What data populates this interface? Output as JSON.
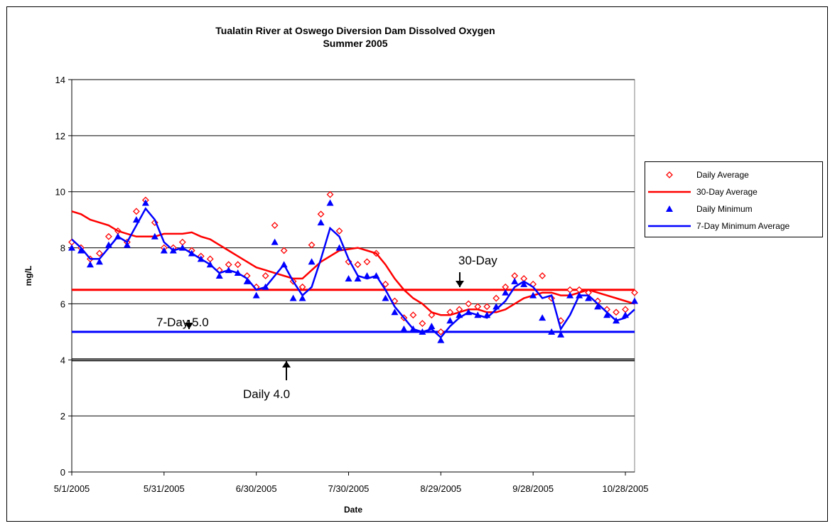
{
  "chart_data": {
    "type": "line",
    "title": [
      "Tualatin River at Oswego Diversion Dam Dissolved Oxygen",
      "Summer 2005"
    ],
    "x_label": "Date",
    "y_label": "mg/L",
    "xlim": [
      "5/1/2005",
      "10/31/2005"
    ],
    "xticks": [
      "5/1/2005",
      "5/31/2005",
      "6/30/2005",
      "7/30/2005",
      "8/29/2005",
      "9/28/2005",
      "10/28/2005"
    ],
    "ylim": [
      0,
      14
    ],
    "yticks": [
      0,
      2,
      4,
      6,
      8,
      10,
      12,
      14
    ],
    "grid": true,
    "legend": "right",
    "x": [
      "5/1/2005",
      "5/4/2005",
      "5/7/2005",
      "5/10/2005",
      "5/13/2005",
      "5/16/2005",
      "5/19/2005",
      "5/22/2005",
      "5/25/2005",
      "5/28/2005",
      "5/31/2005",
      "6/3/2005",
      "6/6/2005",
      "6/9/2005",
      "6/12/2005",
      "6/15/2005",
      "6/18/2005",
      "6/21/2005",
      "6/24/2005",
      "6/27/2005",
      "6/30/2005",
      "7/3/2005",
      "7/6/2005",
      "7/9/2005",
      "7/12/2005",
      "7/15/2005",
      "7/18/2005",
      "7/21/2005",
      "7/24/2005",
      "7/27/2005",
      "7/30/2005",
      "8/2/2005",
      "8/5/2005",
      "8/8/2005",
      "8/11/2005",
      "8/14/2005",
      "8/17/2005",
      "8/20/2005",
      "8/23/2005",
      "8/26/2005",
      "8/29/2005",
      "9/1/2005",
      "9/4/2005",
      "9/7/2005",
      "9/10/2005",
      "9/13/2005",
      "9/16/2005",
      "9/19/2005",
      "9/22/2005",
      "9/25/2005",
      "9/28/2005",
      "10/1/2005",
      "10/4/2005",
      "10/7/2005",
      "10/10/2005",
      "10/13/2005",
      "10/16/2005",
      "10/19/2005",
      "10/22/2005",
      "10/25/2005",
      "10/28/2005",
      "10/31/2005"
    ],
    "series": [
      {
        "name": "Daily Average",
        "color": "#ff0000",
        "marker": "diamond",
        "values": [
          8.2,
          8.0,
          7.6,
          7.8,
          8.4,
          8.6,
          8.2,
          9.3,
          9.7,
          8.9,
          8.0,
          8.0,
          8.2,
          7.9,
          7.7,
          7.6,
          7.2,
          7.4,
          7.4,
          7.0,
          6.6,
          7.0,
          8.8,
          7.9,
          6.8,
          6.6,
          8.1,
          9.2,
          9.9,
          8.6,
          7.5,
          7.4,
          7.5,
          7.8,
          6.7,
          6.1,
          5.5,
          5.6,
          5.3,
          5.6,
          5.0,
          5.7,
          5.8,
          6.0,
          5.9,
          5.9,
          6.2,
          6.6,
          7.0,
          6.9,
          6.7,
          7.0,
          6.2,
          5.4,
          6.5,
          6.5,
          6.4,
          6.1,
          5.8,
          5.7,
          5.8,
          6.4
        ]
      },
      {
        "name": "30-Day Average",
        "color": "#ff0000",
        "marker": "line",
        "values": [
          9.3,
          9.2,
          9.0,
          8.9,
          8.8,
          8.6,
          8.5,
          8.4,
          8.4,
          8.4,
          8.5,
          8.5,
          8.5,
          8.55,
          8.4,
          8.3,
          8.1,
          7.9,
          7.7,
          7.5,
          7.3,
          7.2,
          7.1,
          7.0,
          6.9,
          6.9,
          7.2,
          7.5,
          7.7,
          7.9,
          7.95,
          8.0,
          7.9,
          7.8,
          7.4,
          6.9,
          6.5,
          6.2,
          6.0,
          5.7,
          5.6,
          5.6,
          5.7,
          5.8,
          5.8,
          5.7,
          5.7,
          5.8,
          6.0,
          6.2,
          6.3,
          6.4,
          6.4,
          6.3,
          6.3,
          6.4,
          6.5,
          6.4,
          6.3,
          6.2,
          6.1,
          6.0
        ]
      },
      {
        "name": "Daily Minimum",
        "color": "#0000ff",
        "marker": "triangle",
        "values": [
          8.0,
          7.9,
          7.4,
          7.5,
          8.1,
          8.4,
          8.1,
          9.0,
          9.6,
          8.4,
          7.9,
          7.9,
          8.0,
          7.8,
          7.6,
          7.4,
          7.0,
          7.2,
          7.1,
          6.8,
          6.3,
          6.6,
          8.2,
          7.4,
          6.2,
          6.2,
          7.5,
          8.9,
          9.6,
          8.0,
          6.9,
          6.9,
          7.0,
          7.0,
          6.2,
          5.7,
          5.1,
          5.1,
          5.0,
          5.2,
          4.7,
          5.4,
          5.6,
          5.7,
          5.6,
          5.6,
          5.9,
          6.4,
          6.8,
          6.7,
          6.3,
          5.5,
          5.0,
          4.9,
          6.3,
          6.3,
          6.2,
          5.9,
          5.6,
          5.4,
          5.6,
          6.1
        ]
      },
      {
        "name": "7-Day Minimum Average",
        "color": "#0000ff",
        "marker": "line",
        "values": [
          8.3,
          8.0,
          7.6,
          7.6,
          8.0,
          8.4,
          8.2,
          8.8,
          9.4,
          9.0,
          8.2,
          7.9,
          8.0,
          7.8,
          7.6,
          7.4,
          7.1,
          7.2,
          7.1,
          6.9,
          6.5,
          6.6,
          7.0,
          7.4,
          6.8,
          6.3,
          6.6,
          7.6,
          8.7,
          8.4,
          7.6,
          7.0,
          6.9,
          7.0,
          6.5,
          5.9,
          5.5,
          5.1,
          5.0,
          5.1,
          4.8,
          5.2,
          5.5,
          5.7,
          5.6,
          5.5,
          5.8,
          6.1,
          6.6,
          6.8,
          6.6,
          6.2,
          6.3,
          5.1,
          5.6,
          6.3,
          6.3,
          6.0,
          5.7,
          5.4,
          5.5,
          5.8
        ]
      }
    ],
    "reference_lines": [
      {
        "value": 6.5,
        "label": "30-Day",
        "color": "#ff0000"
      },
      {
        "value": 5.0,
        "label": "7-Day  5.0",
        "color": "#0000ff"
      },
      {
        "value": 4.0,
        "label": "Daily 4.0",
        "color": "#000000"
      }
    ]
  }
}
